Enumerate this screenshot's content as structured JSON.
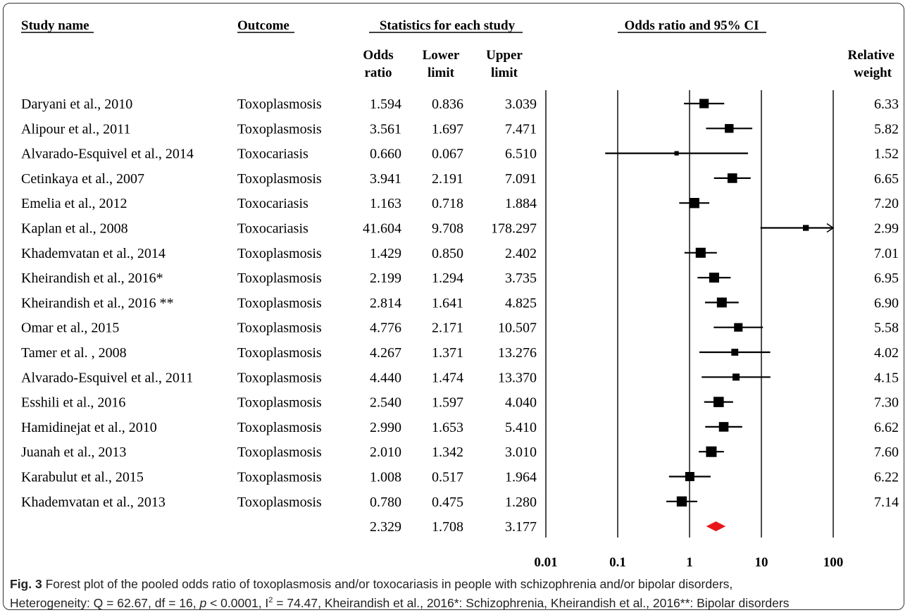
{
  "chart_data": {
    "type": "forest",
    "headers": {
      "study": "Study name",
      "outcome": "Outcome",
      "stats": "Statistics for each study",
      "plot": "Odds ratio and 95% CI",
      "odds_top": "Odds",
      "odds_bottom": "ratio",
      "lower_top": "Lower",
      "lower_bottom": "limit",
      "upper_top": "Upper",
      "upper_bottom": "limit",
      "weight_top": "Relative",
      "weight_bottom": "weight"
    },
    "studies": [
      {
        "name": "Daryani et al., 2010",
        "outcome": "Toxoplasmosis",
        "or": "1.594",
        "lower": "0.836",
        "upper": "3.039",
        "weight": "6.33"
      },
      {
        "name": "Alipour et al., 2011",
        "outcome": "Toxoplasmosis",
        "or": "3.561",
        "lower": "1.697",
        "upper": "7.471",
        "weight": "5.82"
      },
      {
        "name": "Alvarado-Esquivel et al., 2014",
        "outcome": "Toxocariasis",
        "or": "0.660",
        "lower": "0.067",
        "upper": "6.510",
        "weight": "1.52"
      },
      {
        "name": "Cetinkaya et al., 2007",
        "outcome": "Toxoplasmosis",
        "or": "3.941",
        "lower": "2.191",
        "upper": "7.091",
        "weight": "6.65"
      },
      {
        "name": "Emelia et al., 2012",
        "outcome": "Toxocariasis",
        "or": "1.163",
        "lower": "0.718",
        "upper": "1.884",
        "weight": "7.20"
      },
      {
        "name": "Kaplan et al., 2008",
        "outcome": "Toxocariasis",
        "or": "41.604",
        "lower": "9.708",
        "upper": "178.297",
        "weight": "2.99"
      },
      {
        "name": "Khademvatan et al., 2014",
        "outcome": "Toxoplasmosis",
        "or": "1.429",
        "lower": "0.850",
        "upper": "2.402",
        "weight": "7.01"
      },
      {
        "name": "Kheirandish et al., 2016*",
        "outcome": "Toxoplasmosis",
        "or": "2.199",
        "lower": "1.294",
        "upper": "3.735",
        "weight": "6.95"
      },
      {
        "name": "Kheirandish et al., 2016 **",
        "outcome": "Toxoplasmosis",
        "or": "2.814",
        "lower": "1.641",
        "upper": "4.825",
        "weight": "6.90"
      },
      {
        "name": "Omar et al., 2015",
        "outcome": "Toxoplasmosis",
        "or": "4.776",
        "lower": "2.171",
        "upper": "10.507",
        "weight": "5.58"
      },
      {
        "name": "Tamer et al. , 2008",
        "outcome": "Toxoplasmosis",
        "or": "4.267",
        "lower": "1.371",
        "upper": "13.276",
        "weight": "4.02"
      },
      {
        "name": "Alvarado-Esquivel et al., 2011",
        "outcome": "Toxoplasmosis",
        "or": "4.440",
        "lower": "1.474",
        "upper": "13.370",
        "weight": "4.15"
      },
      {
        "name": "Esshili et al., 2016",
        "outcome": "Toxoplasmosis",
        "or": "2.540",
        "lower": "1.597",
        "upper": "4.040",
        "weight": "7.30"
      },
      {
        "name": "Hamidinejat et al., 2010",
        "outcome": "Toxoplasmosis",
        "or": "2.990",
        "lower": "1.653",
        "upper": "5.410",
        "weight": "6.62"
      },
      {
        "name": "Juanah et al., 2013",
        "outcome": "Toxoplasmosis",
        "or": "2.010",
        "lower": "1.342",
        "upper": "3.010",
        "weight": "7.60"
      },
      {
        "name": "Karabulut et al., 2015",
        "outcome": "Toxoplasmosis",
        "or": "1.008",
        "lower": "0.517",
        "upper": "1.964",
        "weight": "6.22"
      },
      {
        "name": "Khademvatan et al., 2013",
        "outcome": "Toxoplasmosis",
        "or": "0.780",
        "lower": "0.475",
        "upper": "1.280",
        "weight": "7.14"
      }
    ],
    "pooled": {
      "or": "2.329",
      "lower": "1.708",
      "upper": "3.177"
    },
    "x_ticks": [
      "0.01",
      "0.1",
      "1",
      "10",
      "100"
    ],
    "x_scale": "log",
    "xlim": [
      0.01,
      100
    ],
    "colors": {
      "marker": "#000000",
      "pooled": "#e8161b",
      "text": "#000000"
    }
  },
  "caption": {
    "fig_label": "Fig. 3",
    "line1": "Forest plot of the pooled odds ratio of toxoplasmosis and/or toxocariasis in people with schizophrenia and/or bipolar disorders,",
    "line2_a": "Heterogeneity: Q = 62.67, df = 16, ",
    "line2_p": "p",
    "line2_b": " < 0.0001, I",
    "line2_sup": "2",
    "line2_c": " = 74.47, Kheirandish et al., 2016*: Schizophrenia, Kheirandish et al., 2016**: Bipolar disorders"
  }
}
